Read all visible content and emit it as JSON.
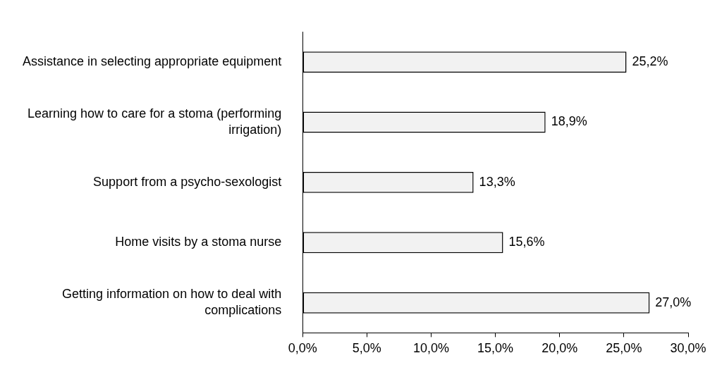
{
  "chart_data": {
    "type": "bar",
    "orientation": "horizontal",
    "categories": [
      "Assistance in selecting appropriate equipment",
      "Learning how to care for a stoma (performing irrigation)",
      "Support from a psycho-sexologist",
      "Home visits by a stoma nurse",
      "Getting information on how to deal with complications"
    ],
    "values": [
      25.2,
      18.9,
      13.3,
      15.6,
      27.0
    ],
    "value_labels": [
      "25,2%",
      "18,9%",
      "13,3%",
      "15,6%",
      "27,0%"
    ],
    "color": "#f2f2f2",
    "xlim": [
      0,
      30
    ],
    "xticks": [
      {
        "value": 0,
        "label": "0,0%"
      },
      {
        "value": 5,
        "label": "5,0%"
      },
      {
        "value": 10,
        "label": "10,0%"
      },
      {
        "value": 15,
        "label": "15,0%"
      },
      {
        "value": 20,
        "label": "20,0%"
      },
      {
        "value": 25,
        "label": "25,0%"
      },
      {
        "value": 30,
        "label": "30,0%"
      }
    ],
    "grid": false,
    "data_labels": true
  }
}
